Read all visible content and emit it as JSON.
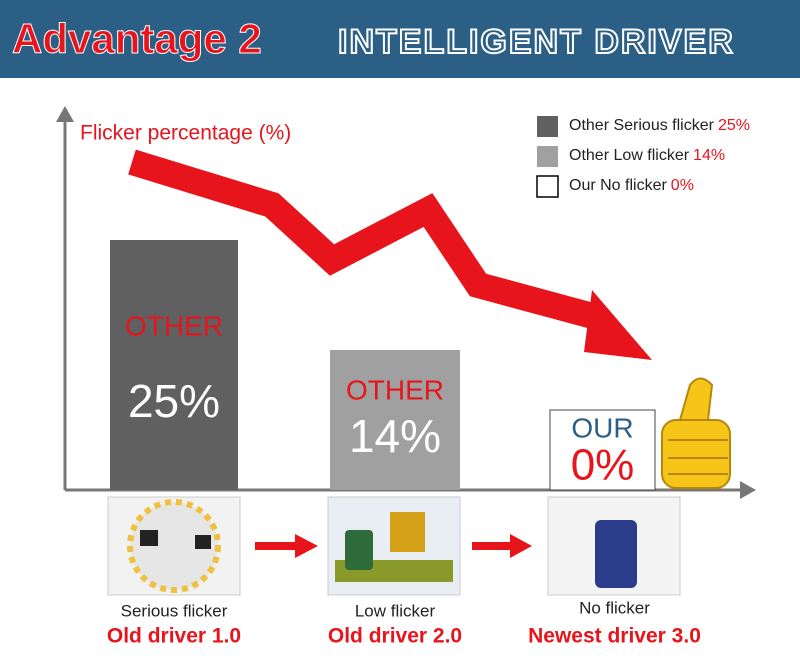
{
  "chart_data": {
    "type": "bar",
    "header": "Advantage 2",
    "subheader": "INTELLIGENT DRIVER",
    "y_label": "Flicker percentage (%)",
    "legend": [
      "Other Serious flicker",
      "Other Low flicker",
      "Our No flicker"
    ],
    "bar_labels": [
      "OTHER",
      "OTHER",
      "OUR"
    ],
    "values": [
      25,
      14,
      0
    ],
    "value_labels": [
      "25%",
      "14%",
      "0%"
    ],
    "colors": [
      "#606060",
      "#a0a0a0",
      "#ffffff"
    ],
    "categories": [
      "Serious flicker",
      "Low flicker",
      "No flicker"
    ],
    "drivers": [
      "Old driver 1.0",
      "Old driver 2.0",
      "Newest driver 3.0"
    ],
    "ylim": [
      0,
      38
    ]
  }
}
